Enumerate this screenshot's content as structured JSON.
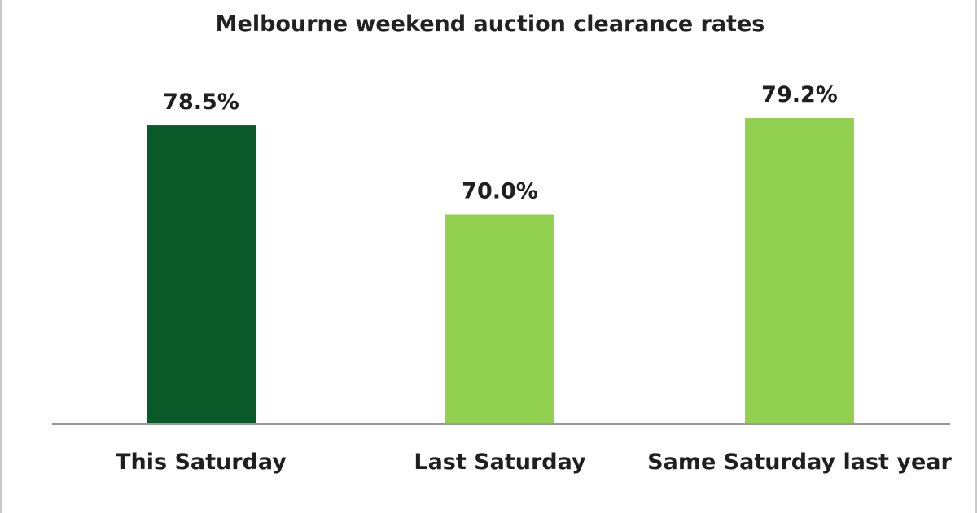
{
  "chart_data": {
    "type": "bar",
    "title": "Melbourne weekend auction clearance rates",
    "xlabel": "",
    "ylabel": "",
    "categories": [
      "This Saturday",
      "Last Saturday",
      "Same Saturday last year"
    ],
    "values": [
      78.5,
      70.0,
      79.2
    ],
    "data_labels": [
      "78.5%",
      "70.0%",
      "79.2%"
    ],
    "unit": "%",
    "ylim": [
      50,
      82
    ],
    "grid": false,
    "legend": "none",
    "colors": [
      "#0b5a2a",
      "#92d050",
      "#92d050"
    ]
  }
}
